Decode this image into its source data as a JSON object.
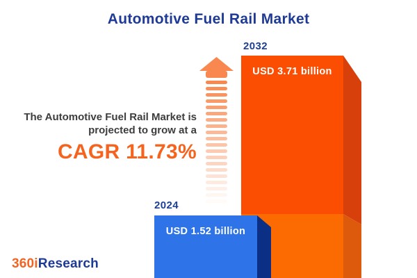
{
  "title": {
    "text": "Automotive Fuel Rail Market",
    "color": "#1e3a94"
  },
  "annotation": {
    "line1": "The Automotive Fuel Rail Market is",
    "line2": "projected to grow at a",
    "cagr": "CAGR 11.73%",
    "text_color": "#3d3d3d",
    "cagr_color": "#f5641e"
  },
  "arrow": {
    "color": "#f8884f",
    "dash_count": 20
  },
  "chart_data": {
    "type": "bar",
    "title": "Automotive Fuel Rail Market",
    "categories": [
      "2024",
      "2032"
    ],
    "values": [
      1.52,
      3.71
    ],
    "unit": "USD billion",
    "value_labels": [
      "USD 1.52 billion",
      "USD 3.71 billion"
    ],
    "cagr_percent": 11.73,
    "legend": "none",
    "grid": false,
    "orientation": "vertical"
  },
  "bars": {
    "b2024": {
      "year": "2024",
      "value_label": "USD 1.52 billion",
      "front": "#2e74e8",
      "side": "#0a2f85",
      "year_color": "#1d3f96"
    },
    "b2032": {
      "year": "2032",
      "value_label": "USD 3.71 billion",
      "front_upper": "#fc4e03",
      "front_lower": "#fc6a02",
      "side_upper": "#d7400a",
      "side_lower": "#dd590c",
      "year_color": "#1d3f96"
    }
  },
  "logo": {
    "prefix": "360i",
    "suffix": "Research",
    "prefix_color": "#f26421",
    "suffix_color": "#1d3a94"
  },
  "background": "#ffffff"
}
